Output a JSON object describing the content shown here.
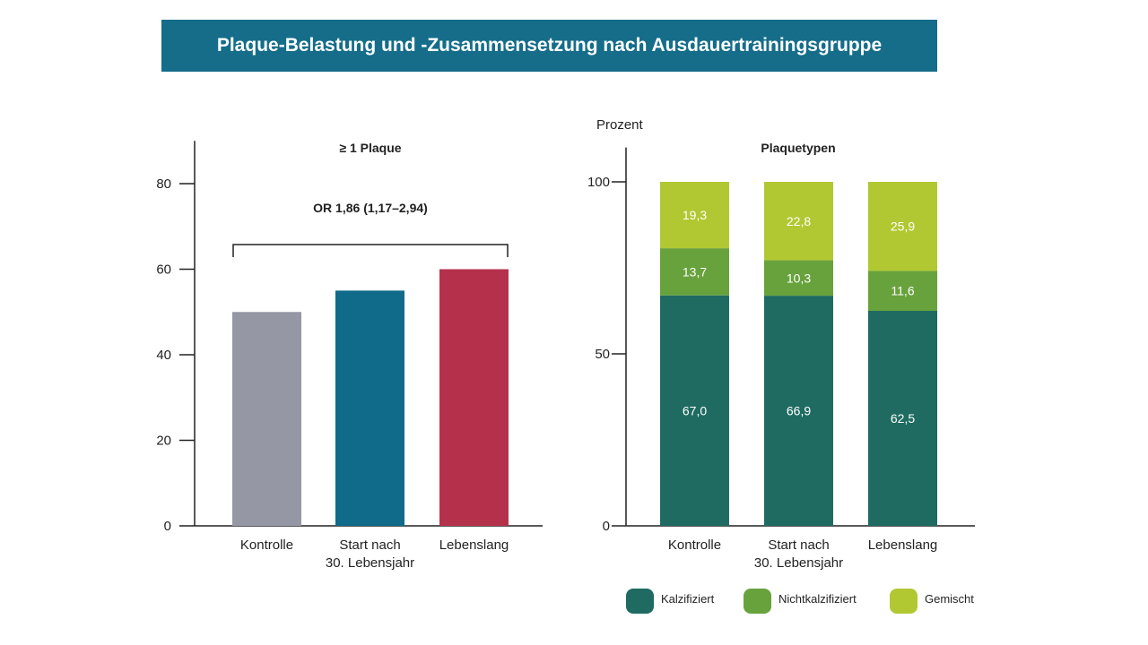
{
  "title": "Plaque-Belastung und -Zusammensetzung nach Ausdauertrainingsgruppe",
  "chart_data": [
    {
      "type": "bar",
      "title": "≥ 1 Plaque",
      "categories": [
        "Kontrolle",
        "Start nach|30. Lebensjahr",
        "Lebenslang"
      ],
      "values": [
        50,
        55,
        60
      ],
      "colors": [
        "#9597a4",
        "#106a8a",
        "#b5314b"
      ],
      "ylim": [
        0,
        90
      ],
      "yticks": [
        0,
        20,
        40,
        60,
        80
      ],
      "annotation": "OR 1,86 (1,17–2,94)",
      "grid": false
    },
    {
      "type": "bar",
      "stacked": true,
      "title": "Plaquetypen",
      "ylabel": "Prozent",
      "categories": [
        "Kontrolle",
        "Start nach|30. Lebensjahr",
        "Lebenslang"
      ],
      "ylim": [
        0,
        110
      ],
      "yticks": [
        0,
        50,
        100
      ],
      "series": [
        {
          "name": "Kalzifiziert",
          "values": [
            67.0,
            66.9,
            62.5
          ],
          "labels": [
            "67,0",
            "66,9",
            "62,5"
          ],
          "color": "#1f6b62"
        },
        {
          "name": "Nichtkalzifiziert",
          "values": [
            13.7,
            10.3,
            11.6
          ],
          "labels": [
            "13,7",
            "10,3",
            "11,6"
          ],
          "color": "#68a23c"
        },
        {
          "name": "Gemischt",
          "values": [
            19.3,
            22.8,
            25.9
          ],
          "labels": [
            "19,3",
            "22,8",
            "25,9"
          ],
          "color": "#b1c832"
        }
      ],
      "legend": "bottom",
      "grid": false
    }
  ]
}
